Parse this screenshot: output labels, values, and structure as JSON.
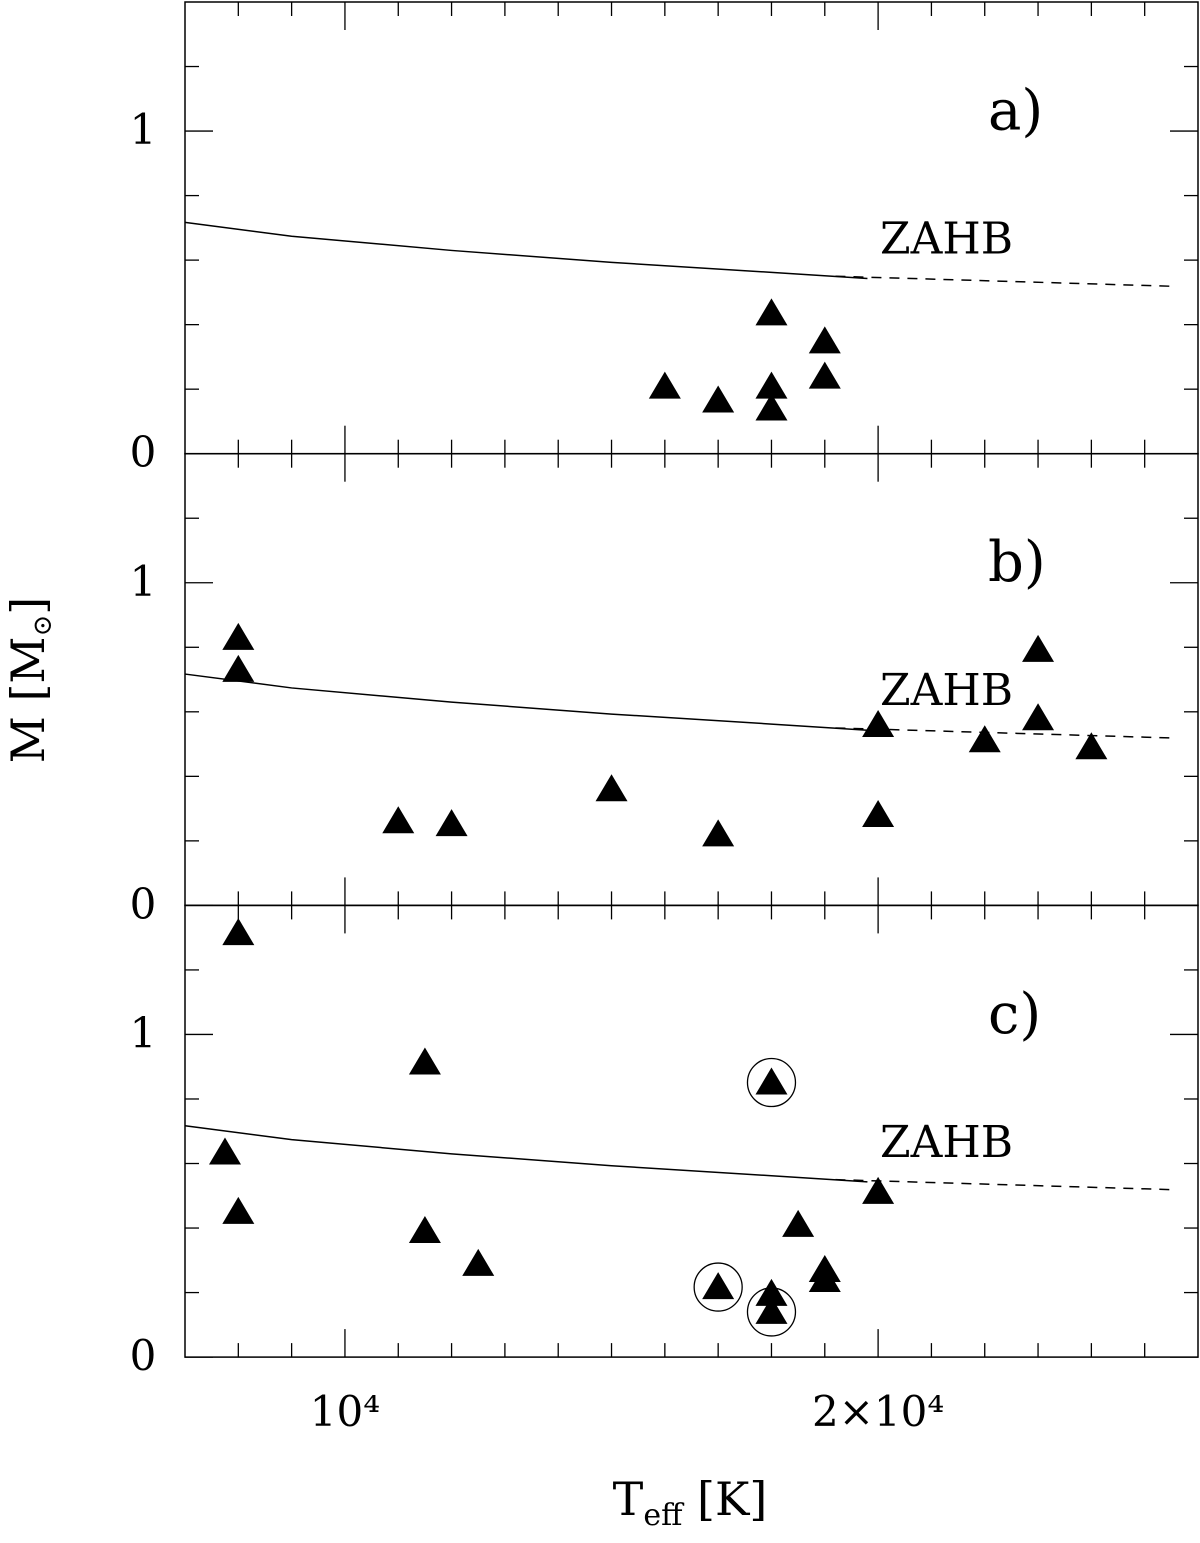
{
  "chart_data": [
    {
      "type": "scatter",
      "panel_label": "a)",
      "annotation": "ZAHB",
      "xlim": [
        7000,
        26000
      ],
      "ylim": [
        0,
        1.4
      ],
      "xticks": [
        10000,
        20000
      ],
      "xminor": [
        8000,
        9000,
        11000,
        12000,
        13000,
        14000,
        15000,
        16000,
        17000,
        18000,
        19000,
        21000,
        22000,
        23000,
        24000,
        25000
      ],
      "yticks": [
        0,
        1
      ],
      "yminor": [
        0.2,
        0.4,
        0.6,
        0.8,
        1.2
      ],
      "points": {
        "x": [
          18000,
          19000,
          16000,
          17000,
          18000,
          18000,
          19000
        ],
        "y": [
          0.435,
          0.348,
          0.208,
          0.165,
          0.208,
          0.14,
          0.239
        ]
      },
      "zahb": {
        "x": [
          7000,
          9000,
          12000,
          15000,
          18000,
          19800
        ],
        "y": [
          0.717,
          0.674,
          0.63,
          0.593,
          0.562,
          0.543
        ]
      },
      "zahb_extension": {
        "x": [
          19200,
          25500
        ],
        "y": [
          0.55,
          0.519
        ]
      }
    },
    {
      "type": "scatter",
      "panel_label": "b)",
      "annotation": "ZAHB",
      "ylabel": [
        "M [M",
        "⊙",
        "]"
      ],
      "xlim": [
        7000,
        26000
      ],
      "ylim": [
        0,
        1.4
      ],
      "xticks": [
        10000,
        20000
      ],
      "xminor": [
        8000,
        9000,
        11000,
        12000,
        13000,
        14000,
        15000,
        16000,
        17000,
        18000,
        19000,
        21000,
        22000,
        23000,
        24000,
        25000
      ],
      "yticks": [
        0,
        1
      ],
      "yminor": [
        0.2,
        0.4,
        0.6,
        0.8,
        1.2
      ],
      "points": {
        "x": [
          8000,
          8000,
          11000,
          12000,
          15000,
          17000,
          20000,
          20000,
          22000,
          23000,
          23000,
          24000
        ],
        "y": [
          0.829,
          0.73,
          0.261,
          0.252,
          0.36,
          0.22,
          0.559,
          0.28,
          0.512,
          0.792,
          0.58,
          0.49
        ]
      },
      "zahb": {
        "x": [
          7000,
          9000,
          12000,
          15000,
          18000,
          19800
        ],
        "y": [
          0.717,
          0.674,
          0.63,
          0.593,
          0.562,
          0.543
        ]
      },
      "zahb_extension": {
        "x": [
          19200,
          25500
        ],
        "y": [
          0.55,
          0.519
        ]
      }
    },
    {
      "type": "scatter",
      "panel_label": "c)",
      "annotation": "ZAHB",
      "xlabel": [
        "T",
        "eff",
        " [K]"
      ],
      "xlim": [
        7000,
        26000
      ],
      "ylim": [
        0,
        1.4
      ],
      "xticks": [
        {
          "value": 10000,
          "label": "10⁴"
        },
        {
          "value": 20000,
          "label": "2×10⁴"
        }
      ],
      "xminor": [
        8000,
        9000,
        11000,
        12000,
        13000,
        14000,
        15000,
        16000,
        17000,
        18000,
        19000,
        21000,
        22000,
        23000,
        24000,
        25000
      ],
      "yticks": [
        0,
        1
      ],
      "yminor": [
        0.2,
        0.4,
        0.6,
        0.8,
        1.2
      ],
      "points": {
        "x": [
          8000,
          11500,
          18000,
          7750,
          8000,
          11500,
          12500,
          17000,
          18000,
          18000,
          18500,
          19000,
          19000,
          20000
        ],
        "y": [
          1.314,
          0.913,
          0.851,
          0.634,
          0.45,
          0.391,
          0.289,
          0.217,
          0.196,
          0.14,
          0.41,
          0.27,
          0.239,
          0.512
        ]
      },
      "circled": {
        "x": [
          18000,
          17000,
          18000
        ],
        "y": [
          0.851,
          0.217,
          0.14
        ]
      },
      "zahb": {
        "x": [
          7000,
          9000,
          12000,
          15000,
          18000,
          19800
        ],
        "y": [
          0.717,
          0.674,
          0.63,
          0.593,
          0.562,
          0.543
        ]
      },
      "zahb_extension": {
        "x": [
          19200,
          25500
        ],
        "y": [
          0.55,
          0.519
        ]
      }
    }
  ]
}
